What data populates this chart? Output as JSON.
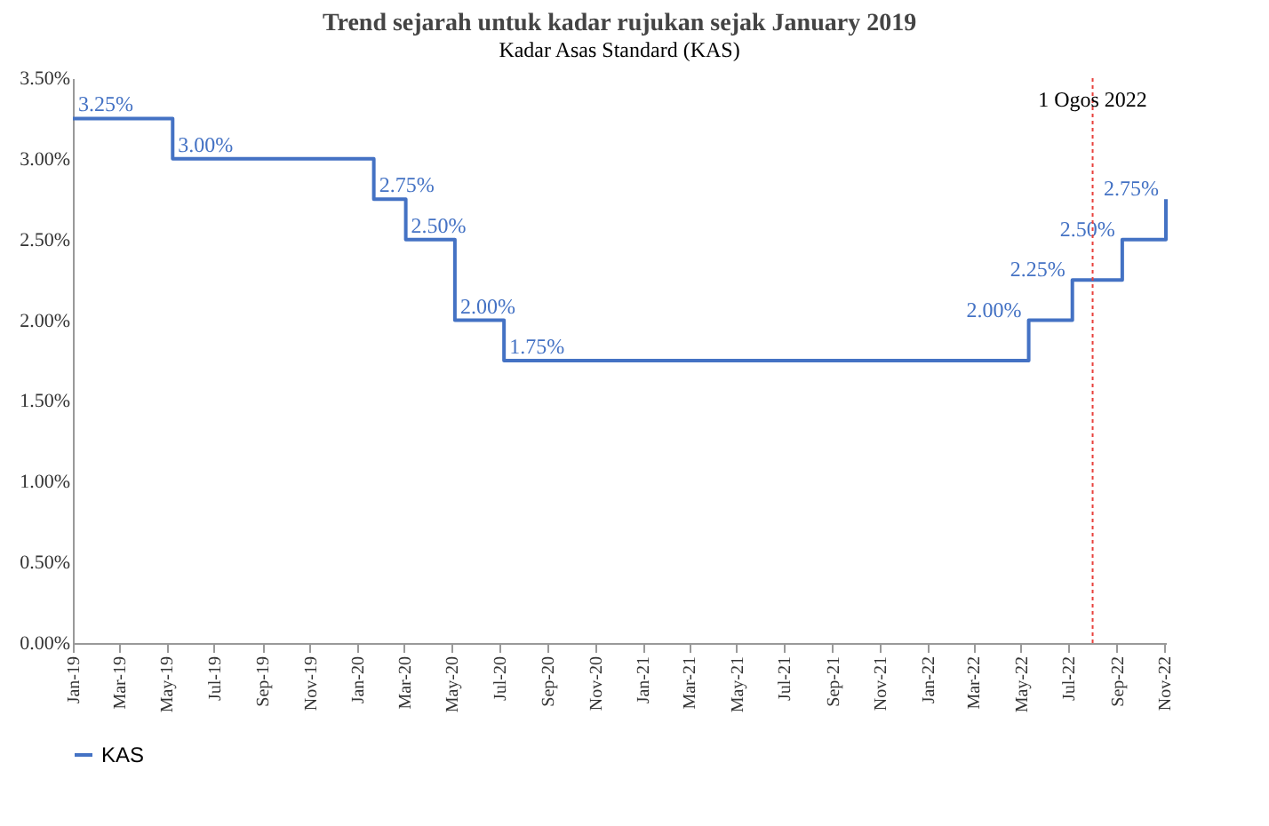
{
  "chart_data": {
    "type": "step",
    "title": "Trend sejarah untuk kadar rujukan sejak January 2019",
    "subtitle": "Kadar Asas Standard (KAS)",
    "x": [
      "2019-01-01",
      "2019-05-09",
      "2020-01-22",
      "2020-03-03",
      "2020-05-05",
      "2020-07-07",
      "2022-05-11",
      "2022-07-06",
      "2022-09-08",
      "2022-11-03"
    ],
    "series": [
      {
        "name": "KAS",
        "color": "#4472c4",
        "values": [
          3.25,
          3.0,
          2.75,
          2.5,
          2.0,
          1.75,
          2.0,
          2.25,
          2.5,
          2.75
        ],
        "value_labels": [
          "3.25%",
          "3.00%",
          "2.75%",
          "2.50%",
          "2.00%",
          "1.75%",
          "2.00%",
          "2.25%",
          "2.50%",
          "2.75%"
        ]
      }
    ],
    "xlim": [
      "2019-01-01",
      "2022-11-03"
    ],
    "xticks": [
      {
        "value": "2019-01-01",
        "label": "Jan-19"
      },
      {
        "value": "2019-03-01",
        "label": "Mar-19"
      },
      {
        "value": "2019-05-01",
        "label": "May-19"
      },
      {
        "value": "2019-07-01",
        "label": "Jul-19"
      },
      {
        "value": "2019-09-01",
        "label": "Sep-19"
      },
      {
        "value": "2019-11-01",
        "label": "Nov-19"
      },
      {
        "value": "2020-01-01",
        "label": "Jan-20"
      },
      {
        "value": "2020-03-01",
        "label": "Mar-20"
      },
      {
        "value": "2020-05-01",
        "label": "May-20"
      },
      {
        "value": "2020-07-01",
        "label": "Jul-20"
      },
      {
        "value": "2020-09-01",
        "label": "Sep-20"
      },
      {
        "value": "2020-11-01",
        "label": "Nov-20"
      },
      {
        "value": "2021-01-01",
        "label": "Jan-21"
      },
      {
        "value": "2021-03-01",
        "label": "Mar-21"
      },
      {
        "value": "2021-05-01",
        "label": "May-21"
      },
      {
        "value": "2021-07-01",
        "label": "Jul-21"
      },
      {
        "value": "2021-09-01",
        "label": "Sep-21"
      },
      {
        "value": "2021-11-01",
        "label": "Nov-21"
      },
      {
        "value": "2022-01-01",
        "label": "Jan-22"
      },
      {
        "value": "2022-03-01",
        "label": "Mar-22"
      },
      {
        "value": "2022-05-01",
        "label": "May-22"
      },
      {
        "value": "2022-07-01",
        "label": "Jul-22"
      },
      {
        "value": "2022-09-01",
        "label": "Sep-22"
      },
      {
        "value": "2022-11-01",
        "label": "Nov-22"
      }
    ],
    "ylim": [
      0,
      3.5
    ],
    "yticks": [
      {
        "value": 0,
        "label": "0.00%"
      },
      {
        "value": 0.5,
        "label": "0.50%"
      },
      {
        "value": 1,
        "label": "1.00%"
      },
      {
        "value": 1.5,
        "label": "1.50%"
      },
      {
        "value": 2,
        "label": "2.00%"
      },
      {
        "value": 2.5,
        "label": "2.50%"
      },
      {
        "value": 3,
        "label": "3.00%"
      },
      {
        "value": 3.5,
        "label": "3.50%"
      }
    ],
    "ref_lines": [
      {
        "axis": "x",
        "value": "2022-08-01",
        "label": "1 Ogos 2022",
        "color": "#e8413c",
        "line_style": "dotted"
      }
    ],
    "legend": "bottom",
    "grid": false
  }
}
